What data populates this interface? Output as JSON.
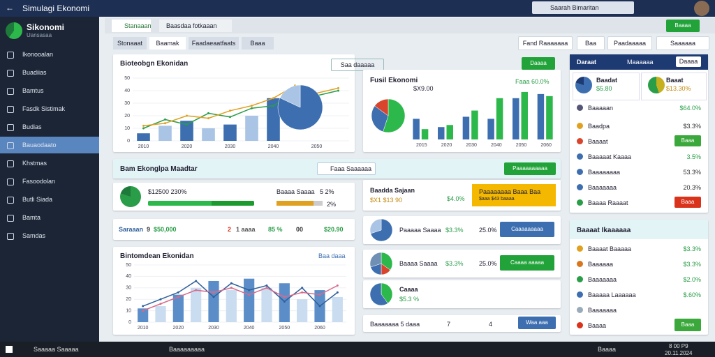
{
  "titlebar": {
    "app": "Simulagi Ekonomi",
    "user": "Saarah Bimaritan"
  },
  "sidebar": {
    "brand": "Sikonomi",
    "subtitle": "Uansasaa",
    "items": [
      "Ikonooalan",
      "Buadiias",
      "Bamtus",
      "Fasdk Sistimak",
      "Budias",
      "Bauaodaato",
      "Khstmas",
      "Fasoodolan",
      "Butli Siada",
      "Bamta",
      "Samdas"
    ]
  },
  "tabs": [
    "Stanaaan",
    "Baasdaa fotkaaan"
  ],
  "subtabs": [
    "Stonaaat",
    "Baamak",
    "Faadaeaatfaats",
    "Baaa"
  ],
  "actions": [
    "Fand Raaaaaaa",
    "Baa",
    "Paadaaaaa",
    "Saaaaaa"
  ],
  "top_button": "Baaaa",
  "panel1": {
    "title": "Bioteobgn Ekonidan",
    "badge": "Saa daaaaa",
    "button": "Daaaa",
    "chart": {
      "type": "combo",
      "categories": [
        "2010",
        null,
        "2020",
        null,
        "2030",
        null,
        "2040",
        null,
        "2050",
        null
      ],
      "ylim": [
        0,
        50
      ],
      "yticks": [
        0,
        10,
        20,
        30,
        40,
        50
      ],
      "bars": {
        "colors": [
          "#3d6fb0",
          "#a9c4e4"
        ],
        "values": [
          6,
          12,
          16,
          10,
          13,
          20,
          34,
          null,
          null,
          null
        ]
      },
      "lines": [
        {
          "color": "#2a9d48",
          "values": [
            10,
            17,
            13,
            22,
            19,
            26,
            28,
            38,
            36,
            40
          ]
        },
        {
          "color": "#e0a020",
          "values": [
            12,
            14,
            20,
            18,
            24,
            28,
            34,
            44,
            38,
            42
          ]
        }
      ],
      "pie": {
        "colors": [
          "#3d6fb0",
          "#a9c4e4"
        ],
        "values": [
          82,
          18
        ]
      }
    }
  },
  "panel2": {
    "title": "Fusil Ekonomi",
    "sub": "$X9.00",
    "green": "Faaa 60.0%",
    "chart": {
      "type": "combo",
      "categories": [
        "2015",
        "2020",
        "2030",
        "2040",
        "2050",
        "2060"
      ],
      "ylim": [
        0,
        50
      ],
      "series": [
        {
          "color": "#3d6fb0",
          "values": [
            20,
            12,
            22,
            20,
            40,
            44
          ]
        },
        {
          "color": "#2db84b",
          "values": [
            10,
            14,
            28,
            40,
            46,
            42
          ]
        }
      ],
      "pie": {
        "colors": [
          "#2db84b",
          "#3d6fb0",
          "#d9452c"
        ],
        "values": [
          55,
          30,
          15
        ]
      }
    }
  },
  "panel_right": {
    "header": "Daraat",
    "header2": "Maaaaaa",
    "button": "Daaaa",
    "card1": "Baadat",
    "card1v": "$5.80",
    "card2": "Baaat",
    "card2v": "$13.30%",
    "rows": [
      {
        "label": "Baaaaan",
        "value": "$64.0%"
      },
      {
        "label": "Baadpa",
        "value": "$3.3%"
      },
      {
        "label": "Baaaat",
        "value": "Baaa"
      },
      {
        "label": "Baaaaat Kaaaa",
        "value": "3.5%"
      },
      {
        "label": "Baaaaaaaa",
        "value": "53.3%"
      },
      {
        "label": "Baaaaaaa",
        "value": "20.3%"
      },
      {
        "label": "Baaaa Raaaat",
        "value": "Baaa"
      }
    ]
  },
  "banner": {
    "title": "Bam Ekonglpa Maadtar",
    "search": "Faaa Saaaaaa",
    "button": "Paaaaaaaaaa"
  },
  "stat1": {
    "value": "$12500 230%",
    "l1": "Baaaa Saaaa",
    "v1": "5 2%",
    "v2": "2%"
  },
  "stat2": {
    "a": "Saraaan",
    "b": "9",
    "c": "$50,000",
    "d": "2",
    "e": "1 aaaa",
    "f": "85 %",
    "g": "00",
    "h": "$20.90"
  },
  "panel3": {
    "title": "Bintomdean Ekonidan",
    "badge": "Baa daaa",
    "chart": {
      "type": "combo",
      "categories": [
        "2010",
        null,
        "2020",
        null,
        "2030",
        null,
        "2040",
        null,
        "2050",
        null,
        "2060",
        null
      ],
      "ylim": [
        0,
        50
      ],
      "yticks": [
        0,
        10,
        20,
        30,
        40,
        50
      ],
      "bars": {
        "colors": [
          "#5b8ec9",
          "#c9dcf0"
        ],
        "values": [
          12,
          14,
          24,
          30,
          36,
          28,
          38,
          30,
          34,
          20,
          28,
          22
        ]
      },
      "lines": [
        {
          "color": "#2f5f99",
          "values": [
            14,
            20,
            26,
            36,
            22,
            34,
            28,
            32,
            18,
            30,
            14,
            26
          ]
        },
        {
          "color": "#d86a8a",
          "values": [
            10,
            16,
            22,
            28,
            26,
            30,
            24,
            30,
            22,
            26,
            24,
            32
          ]
        }
      ]
    }
  },
  "cards": {
    "c1": "Baadda Sajaan",
    "c1a": "$X1 $13 90",
    "c1b": "$4.0%",
    "warn": "Paaaaaaaa Baaa Baa",
    "warn2": "$aaa $43 baaaa",
    "c2": "Paaaaa Saaaa",
    "c2v": "$3.3%",
    "c2w": "25.0%",
    "c2b": "Caaaaaaaaa",
    "c3": "Baaaa Saaaa",
    "c3v": "$3.3%",
    "c3w": "25.0%",
    "c3b": "Caaaa aaaaa",
    "c4": "Caaaa",
    "c4v": "$5.3 %",
    "c5": "Baaaaaaa 5 daaa",
    "c5a": "7",
    "c5b": "4",
    "c5c": "Waa aaa",
    "pies": [
      {
        "colors": [
          "#3d6fb0",
          "#a9c4e4"
        ],
        "values": [
          70,
          30
        ]
      },
      {
        "colors": [
          "#2db84b",
          "#d9452c",
          "#3d6fb0",
          "#6f8fb4"
        ],
        "values": [
          35,
          15,
          20,
          30
        ]
      },
      {
        "colors": [
          "#2db84b",
          "#3d6fb0"
        ],
        "values": [
          40,
          60
        ]
      }
    ]
  },
  "panel_right2": {
    "header": "Baaaat Ikaaaaaa",
    "rows": [
      {
        "label": "Baaaat Baaaaa",
        "value": "$3.3%"
      },
      {
        "label": "Baaaaaa",
        "value": "$3.3%"
      },
      {
        "label": "Baaaaaaa",
        "value": "$2.0%"
      },
      {
        "label": "Baaaaa Laaaaaa",
        "value": "$.60%"
      },
      {
        "label": "Baaaaaaa",
        "value": ""
      },
      {
        "label": "Baaaa",
        "value": "Baaa"
      }
    ]
  },
  "taskbar": {
    "search": "Saaaaa Saaaaa",
    "app": "Baaaaaaaaa",
    "tray": "Baaaa",
    "time": "8 00 P9",
    "date": "20.11.2024"
  }
}
